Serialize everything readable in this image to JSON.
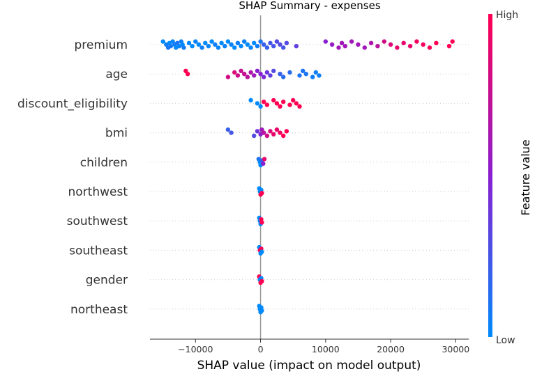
{
  "chart_data": {
    "type": "scatter",
    "subtype": "shap-beeswarm",
    "title": "SHAP Summary - expenses",
    "xlabel": "SHAP value (impact on model output)",
    "xlim": [
      -17000,
      32000
    ],
    "xticks": [
      {
        "value": -10000,
        "label": "−10000"
      },
      {
        "value": 0,
        "label": "0"
      },
      {
        "value": 10000,
        "label": "10000"
      },
      {
        "value": 20000,
        "label": "20000"
      },
      {
        "value": 30000,
        "label": "30000"
      }
    ],
    "grid": false,
    "colormap": {
      "low_color": "#008afb",
      "mid_color": "#8a1fd1",
      "high_color": "#ff0052"
    },
    "colorbar": {
      "label": "Feature value",
      "high_label": "High",
      "low_label": "Low"
    },
    "features": [
      {
        "name": "premium",
        "points": [
          [
            -15000,
            0.0
          ],
          [
            -14500,
            0.05
          ],
          [
            -14200,
            0.1
          ],
          [
            -14000,
            0.0
          ],
          [
            -13800,
            0.08
          ],
          [
            -13500,
            0.02
          ],
          [
            -13200,
            0.06
          ],
          [
            -13000,
            0.0
          ],
          [
            -12800,
            0.1
          ],
          [
            -12500,
            0.03
          ],
          [
            -12200,
            0.05
          ],
          [
            -12000,
            0.0
          ],
          [
            -11800,
            0.07
          ],
          [
            -11000,
            0.02
          ],
          [
            -10500,
            0.0
          ],
          [
            -10000,
            0.04
          ],
          [
            -9500,
            0.01
          ],
          [
            -9000,
            0.05
          ],
          [
            -8500,
            0.0
          ],
          [
            -8000,
            0.03
          ],
          [
            -7500,
            0.0
          ],
          [
            -7000,
            0.05
          ],
          [
            -6500,
            0.02
          ],
          [
            -6000,
            0.0
          ],
          [
            -5500,
            0.04
          ],
          [
            -5000,
            0.0
          ],
          [
            -4500,
            0.03
          ],
          [
            -4000,
            0.0
          ],
          [
            -3500,
            0.05
          ],
          [
            -3000,
            0.01
          ],
          [
            -2500,
            0.04
          ],
          [
            -2000,
            0.0
          ],
          [
            -1500,
            0.02
          ],
          [
            -1000,
            0.0
          ],
          [
            -500,
            0.05
          ],
          [
            0,
            0.1
          ],
          [
            500,
            0.2
          ],
          [
            1000,
            0.2
          ],
          [
            1500,
            0.25
          ],
          [
            2000,
            0.25
          ],
          [
            2500,
            0.3
          ],
          [
            3000,
            0.3
          ],
          [
            3500,
            0.25
          ],
          [
            4000,
            0.3
          ],
          [
            5500,
            0.35
          ],
          [
            10000,
            0.5
          ],
          [
            11000,
            0.55
          ],
          [
            12000,
            0.6
          ],
          [
            12500,
            0.6
          ],
          [
            13000,
            0.6
          ],
          [
            14000,
            0.6
          ],
          [
            15000,
            0.6
          ],
          [
            16000,
            0.6
          ],
          [
            17000,
            0.65
          ],
          [
            18000,
            0.7
          ],
          [
            19000,
            0.8
          ],
          [
            20000,
            0.85
          ],
          [
            21000,
            0.9
          ],
          [
            22000,
            0.9
          ],
          [
            23000,
            0.9
          ],
          [
            24000,
            0.95
          ],
          [
            25000,
            0.95
          ],
          [
            26000,
            0.98
          ],
          [
            27000,
            1.0
          ],
          [
            29000,
            1.0
          ],
          [
            29500,
            1.0
          ]
        ]
      },
      {
        "name": "age",
        "points": [
          [
            -11500,
            1.0
          ],
          [
            -11200,
            1.0
          ],
          [
            -5000,
            0.8
          ],
          [
            -4000,
            0.85
          ],
          [
            -3500,
            0.8
          ],
          [
            -3000,
            0.75
          ],
          [
            -2500,
            0.75
          ],
          [
            -2000,
            0.7
          ],
          [
            -1500,
            0.65
          ],
          [
            -1000,
            0.6
          ],
          [
            -500,
            0.5
          ],
          [
            0,
            0.5
          ],
          [
            500,
            0.45
          ],
          [
            1000,
            0.4
          ],
          [
            1500,
            0.35
          ],
          [
            2000,
            0.3
          ],
          [
            3000,
            0.2
          ],
          [
            3500,
            0.15
          ],
          [
            4500,
            0.15
          ],
          [
            6000,
            0.1
          ],
          [
            6500,
            0.1
          ],
          [
            7000,
            0.1
          ],
          [
            8000,
            0.05
          ],
          [
            8500,
            0.05
          ],
          [
            9000,
            0.05
          ]
        ]
      },
      {
        "name": "discount_eligibility",
        "points": [
          [
            -1500,
            0.0
          ],
          [
            -500,
            0.0
          ],
          [
            0,
            0.0
          ],
          [
            500,
            1.0
          ],
          [
            1000,
            1.0
          ],
          [
            2000,
            1.0
          ],
          [
            2500,
            1.0
          ],
          [
            3000,
            1.0
          ],
          [
            3500,
            1.0
          ],
          [
            4500,
            1.0
          ],
          [
            5000,
            1.0
          ],
          [
            5500,
            1.0
          ],
          [
            6000,
            1.0
          ]
        ]
      },
      {
        "name": "bmi",
        "points": [
          [
            -5000,
            0.2
          ],
          [
            -4500,
            0.25
          ],
          [
            -1000,
            0.3
          ],
          [
            -500,
            0.4
          ],
          [
            0,
            0.5
          ],
          [
            200,
            0.6
          ],
          [
            500,
            0.7
          ],
          [
            1000,
            0.8
          ],
          [
            1500,
            0.85
          ],
          [
            2000,
            0.9
          ],
          [
            2500,
            0.9
          ],
          [
            3000,
            0.95
          ],
          [
            3500,
            1.0
          ],
          [
            4000,
            1.0
          ]
        ]
      },
      {
        "name": "children",
        "points": [
          [
            -300,
            0.1
          ],
          [
            -100,
            0.0
          ],
          [
            0,
            0.0
          ],
          [
            200,
            0.2
          ],
          [
            400,
            0.5
          ],
          [
            600,
            0.9
          ]
        ]
      },
      {
        "name": "northwest",
        "points": [
          [
            -200,
            0.0
          ],
          [
            -100,
            0.0
          ],
          [
            0,
            1.0
          ],
          [
            100,
            0.0
          ],
          [
            200,
            1.0
          ]
        ]
      },
      {
        "name": "southwest",
        "points": [
          [
            -200,
            0.0
          ],
          [
            -100,
            0.0
          ],
          [
            0,
            0.0
          ],
          [
            100,
            1.0
          ],
          [
            200,
            1.0
          ]
        ]
      },
      {
        "name": "southeast",
        "points": [
          [
            -200,
            0.0
          ],
          [
            -100,
            1.0
          ],
          [
            0,
            0.0
          ],
          [
            100,
            1.0
          ],
          [
            200,
            0.0
          ]
        ]
      },
      {
        "name": "gender",
        "points": [
          [
            -200,
            1.0
          ],
          [
            -100,
            0.0
          ],
          [
            0,
            1.0
          ],
          [
            100,
            0.0
          ],
          [
            200,
            1.0
          ]
        ]
      },
      {
        "name": "northeast",
        "points": [
          [
            -200,
            0.0
          ],
          [
            -100,
            0.0
          ],
          [
            0,
            0.0
          ],
          [
            100,
            0.0
          ],
          [
            200,
            0.0
          ]
        ]
      }
    ]
  }
}
